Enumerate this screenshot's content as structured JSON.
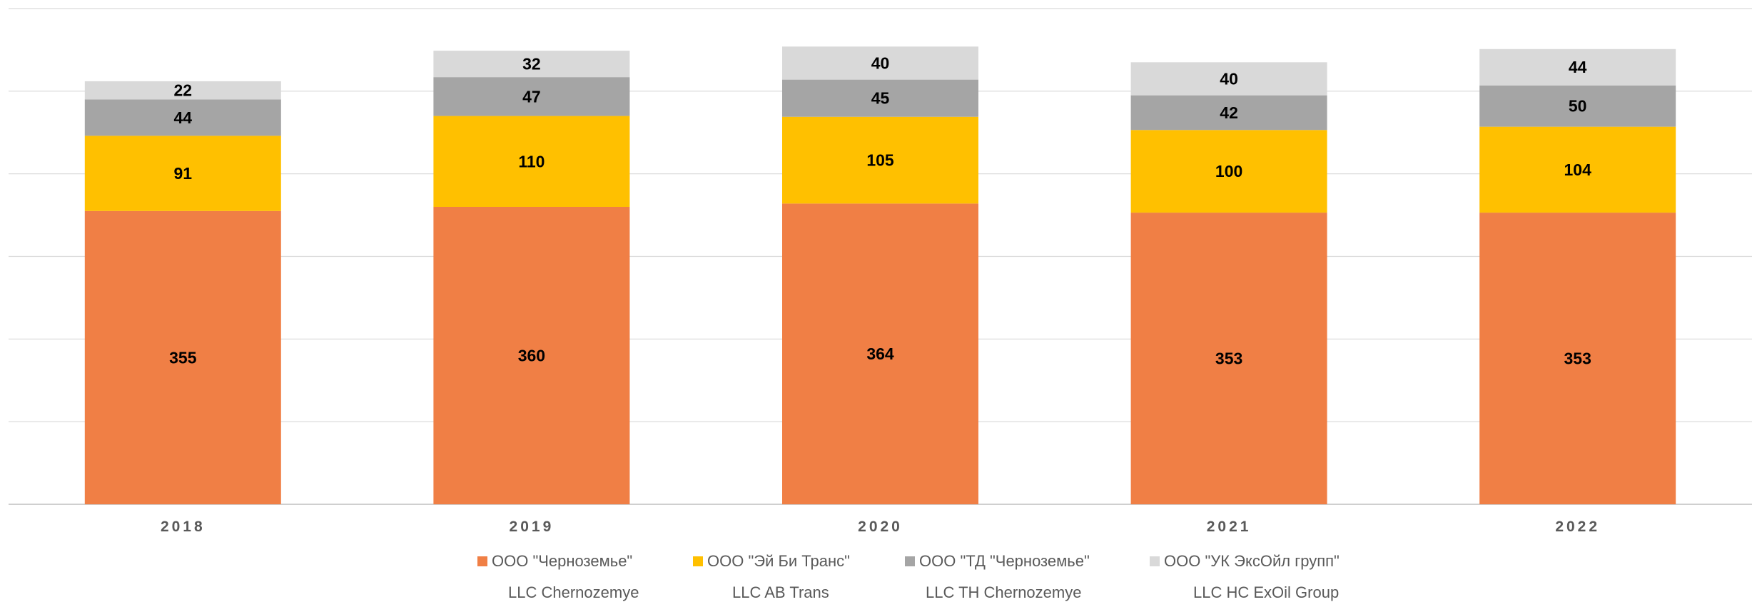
{
  "chart_data": {
    "type": "bar",
    "stacked": true,
    "categories": [
      "2018",
      "2019",
      "2020",
      "2021",
      "2022"
    ],
    "series": [
      {
        "name": "ООО \"Черноземье\"",
        "color": "#F07F45",
        "values": [
          355,
          360,
          364,
          353,
          353
        ]
      },
      {
        "name": "ООО \"Эй Би Транс\"",
        "color": "#FFC000",
        "values": [
          91,
          110,
          105,
          100,
          104
        ]
      },
      {
        "name": "ООО \"ТД \"Черноземье\"",
        "color": "#A5A5A5",
        "values": [
          44,
          47,
          45,
          42,
          50
        ]
      },
      {
        "name": "ООО \"УК ЭксОйл групп\"",
        "color": "#D9D9D9",
        "values": [
          22,
          32,
          40,
          40,
          44
        ]
      }
    ],
    "ylim": [
      0,
      600
    ],
    "gridlines": [
      0,
      100,
      200,
      300,
      400,
      500,
      600
    ],
    "grid": true,
    "y_tick_labels_visible": false,
    "legend_position": "bottom"
  },
  "legend_sublabels": [
    "LLC Chernozemye",
    "LLC AB Trans",
    "LLC TH Chernozemye",
    "LLC HC ExOil Group"
  ]
}
